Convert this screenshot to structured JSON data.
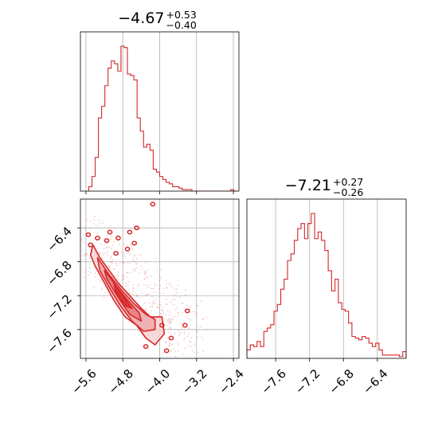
{
  "chart_data": {
    "type": "corner",
    "color": "#d62728",
    "fill_colors": [
      "#f7d4d4",
      "#eea9aa",
      "#e57e7f",
      "#d62728"
    ],
    "grid": true,
    "panels": [
      {
        "id": "hist_p1",
        "type": "histogram",
        "title": {
          "median": "−4.67",
          "plus": "+0.53",
          "minus": "−0.40"
        },
        "xlim": [
          -5.72,
          -2.28
        ],
        "xticks": [
          -5.6,
          -4.8,
          -4.0,
          -3.2,
          -2.4
        ],
        "bin_edges": [
          -5.54,
          -5.47,
          -5.4,
          -5.33,
          -5.26,
          -5.19,
          -5.12,
          -5.05,
          -4.98,
          -4.91,
          -4.84,
          -4.77,
          -4.7,
          -4.63,
          -4.56,
          -4.49,
          -4.42,
          -4.35,
          -4.28,
          -4.21,
          -4.14,
          -4.07,
          -4.0,
          -3.93,
          -3.86,
          -3.79,
          -3.72,
          -3.65,
          -3.58,
          -3.51,
          -3.44,
          -3.37,
          -3.3,
          -3.23,
          -3.16,
          -3.09,
          -3.02,
          -2.95,
          -2.88,
          -2.81,
          -2.74,
          -2.67,
          -2.6,
          -2.53,
          -2.46,
          -2.39,
          -2.32
        ],
        "counts": [
          3,
          10,
          23,
          50,
          58,
          72,
          84,
          89,
          87,
          82,
          99,
          98,
          80,
          79,
          76,
          50,
          41,
          30,
          32,
          28,
          15,
          13,
          10,
          8,
          6,
          5,
          3,
          3,
          2,
          1,
          1,
          1,
          0,
          0,
          0,
          0,
          0,
          0,
          0,
          0,
          0,
          0,
          0,
          0,
          1,
          0
        ]
      },
      {
        "id": "scatter_p1_p2",
        "type": "contour",
        "xlim": [
          -5.72,
          -2.28
        ],
        "ylim": [
          -7.94,
          -6.06
        ],
        "xticks": [
          -5.6,
          -4.8,
          -4.0,
          -3.2,
          -2.4
        ],
        "yticks": [
          -6.4,
          -6.8,
          -7.2,
          -7.6
        ],
        "level_polygons": [
          [
            [
              -5.45,
              -6.6
            ],
            [
              -5.3,
              -6.75
            ],
            [
              -5.1,
              -6.9
            ],
            [
              -4.9,
              -7.05
            ],
            [
              -4.65,
              -7.2
            ],
            [
              -4.4,
              -7.35
            ],
            [
              -4.2,
              -7.45
            ],
            [
              -3.95,
              -7.45
            ],
            [
              -3.9,
              -7.65
            ],
            [
              -4.1,
              -7.78
            ],
            [
              -4.3,
              -7.7
            ],
            [
              -4.5,
              -7.55
            ],
            [
              -4.75,
              -7.45
            ],
            [
              -5.0,
              -7.25
            ],
            [
              -5.2,
              -7.05
            ],
            [
              -5.4,
              -6.85
            ],
            [
              -5.5,
              -6.72
            ]
          ],
          [
            [
              -5.35,
              -6.75
            ],
            [
              -5.1,
              -6.95
            ],
            [
              -4.8,
              -7.15
            ],
            [
              -4.55,
              -7.3
            ],
            [
              -4.3,
              -7.42
            ],
            [
              -4.1,
              -7.48
            ],
            [
              -4.1,
              -7.6
            ],
            [
              -4.35,
              -7.62
            ],
            [
              -4.6,
              -7.5
            ],
            [
              -4.85,
              -7.32
            ],
            [
              -5.1,
              -7.1
            ],
            [
              -5.3,
              -6.9
            ]
          ],
          [
            [
              -5.2,
              -6.9
            ],
            [
              -4.95,
              -7.08
            ],
            [
              -4.7,
              -7.25
            ],
            [
              -4.45,
              -7.4
            ],
            [
              -4.4,
              -7.5
            ],
            [
              -4.65,
              -7.42
            ],
            [
              -4.9,
              -7.22
            ],
            [
              -5.15,
              -7.0
            ]
          ],
          [
            [
              -5.0,
              -7.05
            ],
            [
              -4.8,
              -7.2
            ],
            [
              -4.6,
              -7.35
            ],
            [
              -4.75,
              -7.32
            ],
            [
              -4.95,
              -7.15
            ]
          ]
        ],
        "blobs": [
          [
            -5.55,
            -6.48
          ],
          [
            -5.15,
            -6.55
          ],
          [
            -4.9,
            -6.52
          ],
          [
            -4.65,
            -6.45
          ],
          [
            -4.5,
            -6.4
          ],
          [
            -5.5,
            -6.6
          ],
          [
            -4.95,
            -6.7
          ],
          [
            -4.55,
            -6.58
          ],
          [
            -3.95,
            -7.55
          ],
          [
            -3.4,
            -7.38
          ],
          [
            -3.45,
            -7.55
          ],
          [
            -3.75,
            -7.7
          ],
          [
            -3.85,
            -7.85
          ],
          [
            -4.15,
            -6.12
          ],
          [
            -5.35,
            -6.52
          ],
          [
            -4.3,
            -7.8
          ],
          [
            -4.7,
            -6.65
          ],
          [
            -5.08,
            -6.45
          ]
        ]
      },
      {
        "id": "hist_p2",
        "type": "histogram",
        "title": {
          "median": "−7.21",
          "plus": "+0.27",
          "minus": "−0.26"
        },
        "xlim": [
          -7.94,
          -6.06
        ],
        "xticks": [
          -7.6,
          -7.2,
          -6.8,
          -6.4
        ],
        "bin_edges": [
          -7.94,
          -7.9,
          -7.86,
          -7.82,
          -7.78,
          -7.74,
          -7.7,
          -7.66,
          -7.62,
          -7.58,
          -7.54,
          -7.5,
          -7.46,
          -7.42,
          -7.38,
          -7.34,
          -7.3,
          -7.26,
          -7.22,
          -7.18,
          -7.14,
          -7.1,
          -7.06,
          -7.02,
          -6.98,
          -6.94,
          -6.9,
          -6.86,
          -6.82,
          -6.78,
          -6.74,
          -6.7,
          -6.66,
          -6.62,
          -6.58,
          -6.54,
          -6.5,
          -6.46,
          -6.42,
          -6.38,
          -6.34,
          -6.3,
          -6.26,
          -6.22,
          -6.18,
          -6.14,
          -6.1,
          -6.06
        ],
        "counts": [
          5,
          8,
          7,
          10,
          7,
          16,
          18,
          20,
          28,
          32,
          41,
          47,
          58,
          62,
          70,
          77,
          80,
          71,
          80,
          86,
          71,
          75,
          70,
          64,
          52,
          40,
          47,
          33,
          29,
          28,
          21,
          13,
          12,
          11,
          13,
          12,
          9,
          7,
          9,
          5,
          2,
          2,
          2,
          2,
          2,
          1,
          4
        ]
      }
    ]
  }
}
